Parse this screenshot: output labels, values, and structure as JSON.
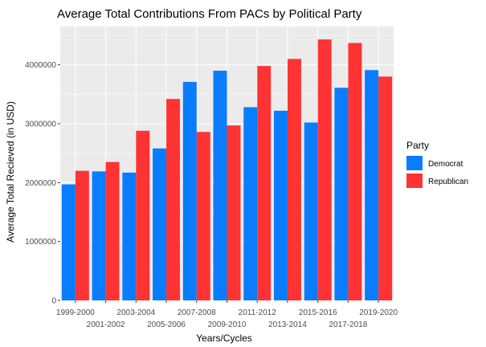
{
  "chart_data": {
    "type": "bar",
    "title": "Average Total Contributions From PACs by Political Party",
    "xlabel": "Years/Cycles",
    "ylabel": "Average Total Recieved (in USD)",
    "categories": [
      "1999-2000",
      "2001-2002",
      "2003-2004",
      "2005-2006",
      "2007-2008",
      "2009-2010",
      "2011-2012",
      "2013-2014",
      "2015-2016",
      "2017-2018",
      "2019-2020"
    ],
    "series": [
      {
        "name": "Democrat",
        "color": "#0A7CFF",
        "values": [
          1970000,
          2190000,
          2170000,
          2580000,
          3710000,
          3900000,
          3280000,
          3220000,
          3020000,
          3610000,
          3910000
        ]
      },
      {
        "name": "Republican",
        "color": "#FF3333",
        "values": [
          2200000,
          2350000,
          2880000,
          3420000,
          2860000,
          2970000,
          3980000,
          4100000,
          4430000,
          4370000,
          3800000
        ]
      }
    ],
    "yticks": [
      0,
      1000000,
      2000000,
      3000000,
      4000000
    ],
    "ytick_labels": [
      "0",
      "1000000",
      "2000000",
      "3000000",
      "4000000"
    ],
    "ylim": [
      0,
      4650000
    ],
    "grid": true,
    "panel_background": "#EBEBEB",
    "legend": {
      "title": "Party",
      "placement": "right"
    }
  }
}
